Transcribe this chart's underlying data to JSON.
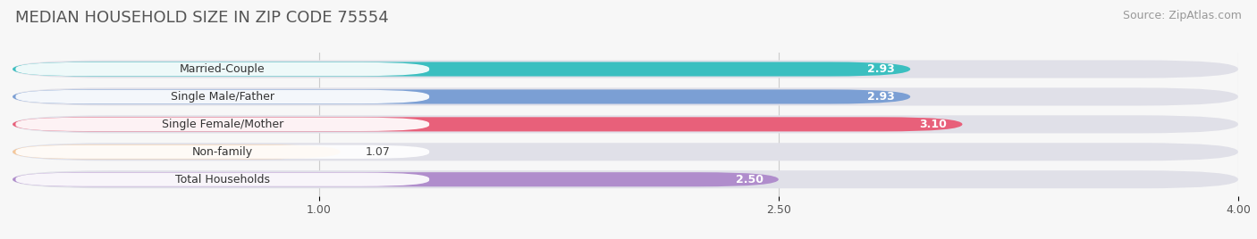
{
  "title": "MEDIAN HOUSEHOLD SIZE IN ZIP CODE 75554",
  "source": "Source: ZipAtlas.com",
  "categories": [
    "Married-Couple",
    "Single Male/Father",
    "Single Female/Mother",
    "Non-family",
    "Total Households"
  ],
  "values": [
    2.93,
    2.93,
    3.1,
    1.07,
    2.5
  ],
  "bar_colors": [
    "#3bbfc0",
    "#7b9fd4",
    "#e8607a",
    "#f5c89a",
    "#b08dcc"
  ],
  "value_text_colors": [
    "white",
    "white",
    "white",
    "black",
    "black"
  ],
  "bar_bg_color": "#e0e0e8",
  "background_color": "#f7f7f7",
  "xlim": [
    0,
    4.0
  ],
  "xticks": [
    1.0,
    2.5,
    4.0
  ],
  "title_fontsize": 13,
  "source_fontsize": 9,
  "label_fontsize": 9,
  "value_fontsize": 9
}
